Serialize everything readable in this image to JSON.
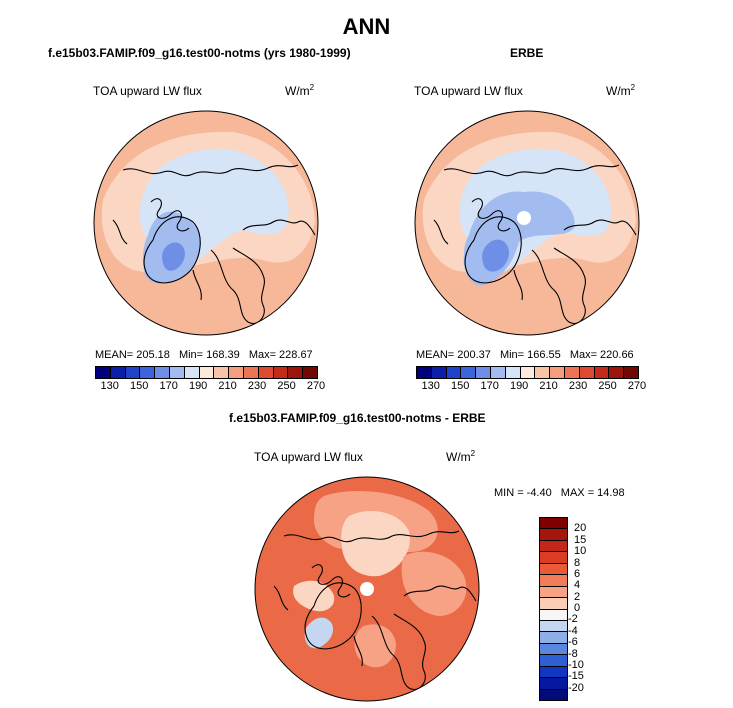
{
  "page_title": "ANN",
  "panels": {
    "model": {
      "title": "f.e15b03.FAMIP.f09_g16.test00-notms (yrs 1980-1999)",
      "variable": "TOA upward LW flux",
      "units_base": "W/m",
      "units_exp": "2",
      "stats": {
        "mean_label": "MEAN=",
        "mean": "205.18",
        "min_label": "Min=",
        "min": "168.39",
        "max_label": "Max=",
        "max": "228.67"
      }
    },
    "obs": {
      "title": "ERBE",
      "variable": "TOA upward LW flux",
      "units_base": "W/m",
      "units_exp": "2",
      "stats": {
        "mean_label": "MEAN=",
        "mean": "200.37",
        "min_label": "Min=",
        "min": "166.55",
        "max_label": "Max=",
        "max": "220.66"
      }
    },
    "diff": {
      "title": "f.e15b03.FAMIP.f09_g16.test00-notms - ERBE",
      "variable": "TOA upward LW flux",
      "units_base": "W/m",
      "units_exp": "2",
      "stats": {
        "min_label": "MIN =",
        "min": "-4.40",
        "max_label": "MAX =",
        "max": "14.98"
      }
    }
  },
  "colorbars": {
    "absolute": {
      "tick_labels": [
        "130",
        "150",
        "170",
        "190",
        "210",
        "230",
        "250",
        "270"
      ],
      "colors": [
        "#00007f",
        "#0a1ea9",
        "#1f43c9",
        "#3a65dc",
        "#6f8ee6",
        "#a2bcef",
        "#d5e4f7",
        "#fde8dc",
        "#f8c3a6",
        "#f39f7e",
        "#eb7554",
        "#dd4a32",
        "#c42a1a",
        "#9c150d",
        "#720706"
      ]
    },
    "difference": {
      "tick_labels": [
        "20",
        "15",
        "10",
        "8",
        "6",
        "4",
        "2",
        "0",
        "-2",
        "-4",
        "-6",
        "-8",
        "-10",
        "-15",
        "-20"
      ],
      "colors": [
        "#7f0000",
        "#a5160f",
        "#c4261a",
        "#dc3b24",
        "#ea5a38",
        "#f27c58",
        "#f7a284",
        "#fbccb6",
        "#f6f6f6",
        "#c5d6f0",
        "#8eaee8",
        "#5a87de",
        "#2f5fd4",
        "#1235c2",
        "#0718a0",
        "#010b7a"
      ]
    }
  },
  "map_fields": {
    "model_background": "#f6b898",
    "model_north_band": "#fbd6c3",
    "model_arctic": "#d5e4f7",
    "model_greenland": "#a2bcef",
    "model_greenland_core": "#6f8ee6",
    "obs_background": "#f6b898",
    "obs_north_band": "#fbd6c3",
    "obs_arctic": "#d5e4f7",
    "obs_greenland": "#a2bcef",
    "obs_greenland_core": "#6f8ee6",
    "diff_background": "#ea6a48",
    "diff_light": "#f7a284",
    "diff_pale": "#fbd6c3",
    "diff_cool": "#c5d6f0",
    "pole_hole": "#ffffff"
  }
}
